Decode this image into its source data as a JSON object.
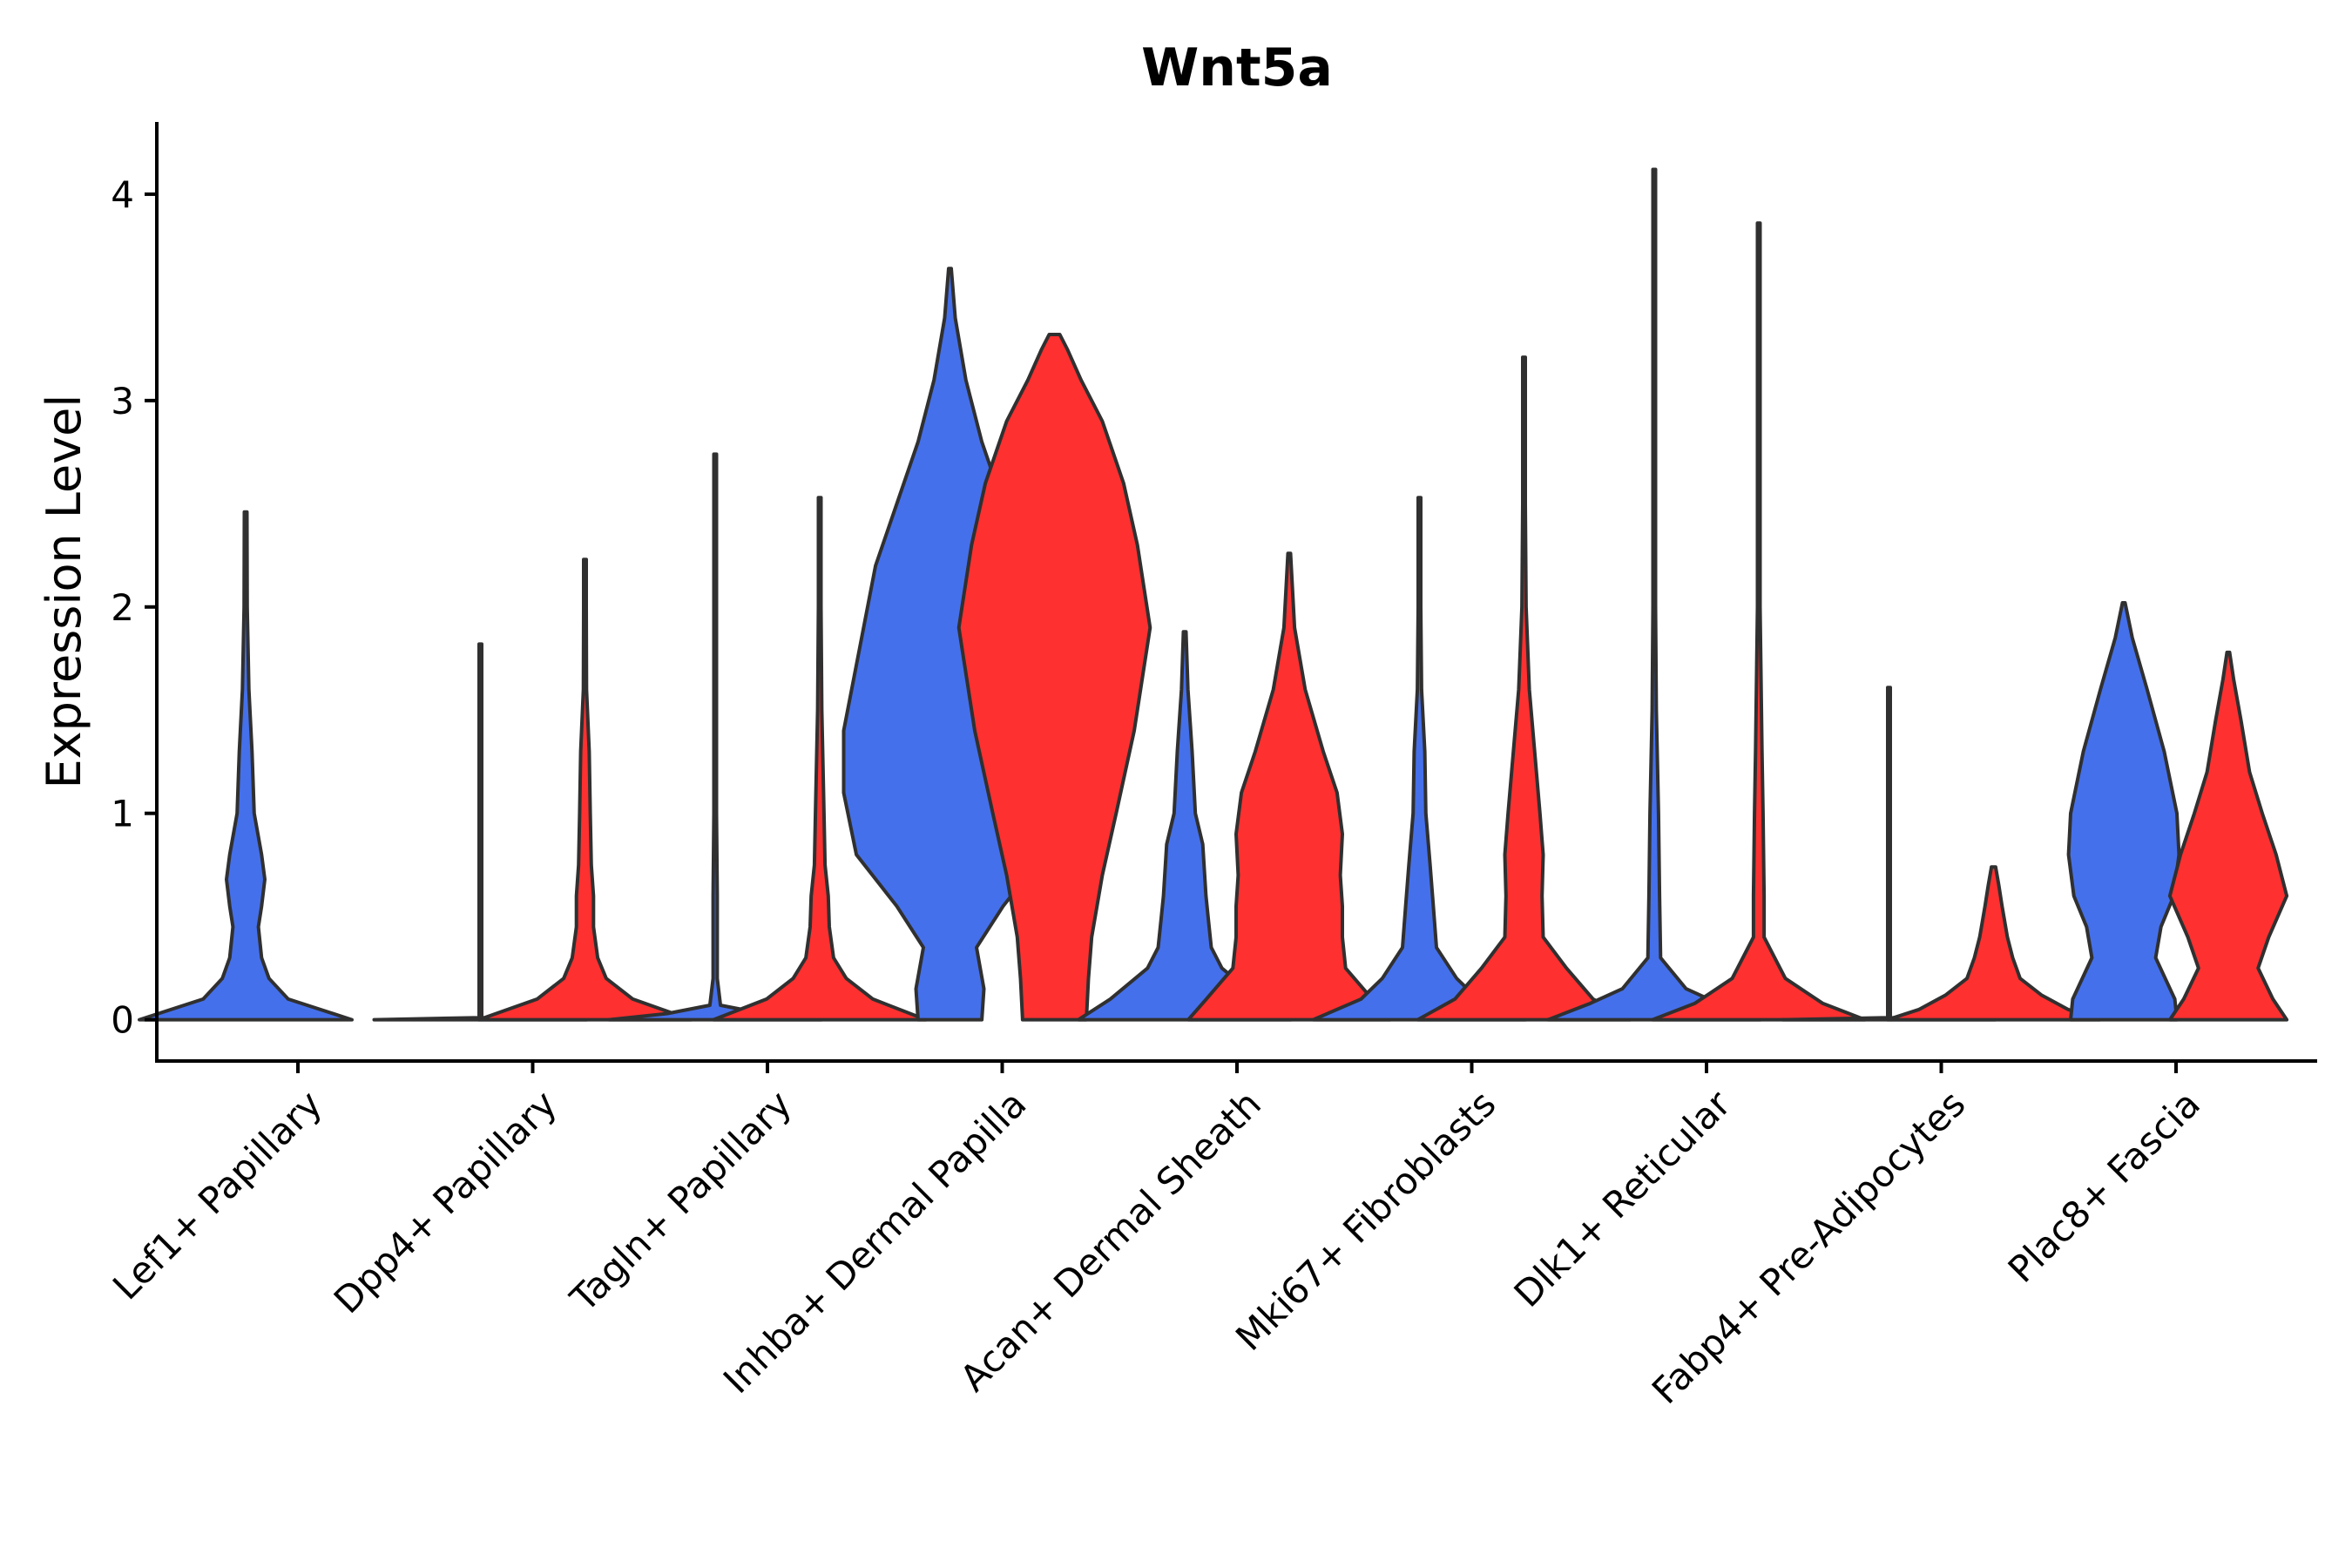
{
  "chart_data": {
    "type": "violin",
    "title": "Wnt5a",
    "xlabel": "",
    "ylabel": "Expression Level",
    "ylim": [
      -0.2,
      4.35
    ],
    "yticks": [
      0,
      1,
      2,
      3,
      4
    ],
    "grid": false,
    "legend": "none",
    "colors": {
      "group_a": "#4570EB",
      "group_b": "#FF3030",
      "outline": "#303030"
    },
    "categories": [
      "Lef1+ Papillary",
      "Dpp4+ Papillary",
      "Tagln+ Papillary",
      "Inhba+ Dermal Papilla",
      "Acan+ Dermal Sheath",
      "Mki67+ Fibroblasts",
      "Dlk1+ Reticular",
      "Fabp4+ Pre-Adipocytes",
      "Plac8+ Fascia"
    ],
    "violins": [
      {
        "category": "Lef1+ Papillary",
        "group": "blue",
        "max": 2.46,
        "profile": [
          [
            0,
            1.0
          ],
          [
            0.1,
            0.4
          ],
          [
            0.2,
            0.22
          ],
          [
            0.3,
            0.15
          ],
          [
            0.45,
            0.12
          ],
          [
            0.55,
            0.15
          ],
          [
            0.68,
            0.18
          ],
          [
            0.8,
            0.15
          ],
          [
            1.0,
            0.08
          ],
          [
            1.3,
            0.06
          ],
          [
            1.6,
            0.03
          ],
          [
            2.0,
            0.015
          ],
          [
            2.46,
            0.005
          ]
        ]
      },
      {
        "category": "Dpp4+ Papillary",
        "group": "blue",
        "max": 1.82,
        "profile": [
          [
            0,
            1.0
          ],
          [
            0.01,
            0.01
          ],
          [
            0.5,
            0.005
          ],
          [
            1.82,
            0.003
          ]
        ]
      },
      {
        "category": "Dpp4+ Papillary",
        "group": "red",
        "max": 2.23,
        "profile": [
          [
            0,
            1.0
          ],
          [
            0.1,
            0.45
          ],
          [
            0.2,
            0.2
          ],
          [
            0.3,
            0.12
          ],
          [
            0.45,
            0.08
          ],
          [
            0.6,
            0.08
          ],
          [
            0.75,
            0.06
          ],
          [
            1.0,
            0.05
          ],
          [
            1.3,
            0.04
          ],
          [
            1.6,
            0.015
          ],
          [
            2.0,
            0.006
          ],
          [
            2.23,
            0.004
          ]
        ]
      },
      {
        "category": "Tagln+ Papillary",
        "group": "blue",
        "max": 2.74,
        "profile": [
          [
            0,
            1.0
          ],
          [
            0.03,
            0.45
          ],
          [
            0.07,
            0.05
          ],
          [
            0.2,
            0.02
          ],
          [
            0.6,
            0.02
          ],
          [
            1.0,
            0.01
          ],
          [
            1.5,
            0.008
          ],
          [
            2.74,
            0.004
          ]
        ]
      },
      {
        "category": "Tagln+ Papillary",
        "group": "red",
        "max": 2.53,
        "profile": [
          [
            0,
            1.0
          ],
          [
            0.1,
            0.5
          ],
          [
            0.2,
            0.25
          ],
          [
            0.3,
            0.13
          ],
          [
            0.45,
            0.09
          ],
          [
            0.6,
            0.08
          ],
          [
            0.75,
            0.05
          ],
          [
            1.0,
            0.04
          ],
          [
            1.5,
            0.02
          ],
          [
            2.0,
            0.008
          ],
          [
            2.53,
            0.004
          ]
        ]
      },
      {
        "category": "Inhba+ Dermal Papilla",
        "group": "blue",
        "max": 3.64,
        "profile": [
          [
            0,
            0.3
          ],
          [
            0.15,
            0.32
          ],
          [
            0.35,
            0.25
          ],
          [
            0.55,
            0.5
          ],
          [
            0.8,
            0.88
          ],
          [
            1.1,
            1.0
          ],
          [
            1.4,
            1.0
          ],
          [
            1.8,
            0.85
          ],
          [
            2.2,
            0.7
          ],
          [
            2.5,
            0.5
          ],
          [
            2.8,
            0.3
          ],
          [
            3.1,
            0.15
          ],
          [
            3.4,
            0.05
          ],
          [
            3.64,
            0.005
          ]
        ]
      },
      {
        "category": "Inhba+ Dermal Papilla",
        "group": "red",
        "max": 3.32,
        "profile": [
          [
            0,
            0.3
          ],
          [
            0.2,
            0.32
          ],
          [
            0.4,
            0.35
          ],
          [
            0.7,
            0.45
          ],
          [
            1.0,
            0.58
          ],
          [
            1.4,
            0.75
          ],
          [
            1.9,
            0.9
          ],
          [
            2.3,
            0.78
          ],
          [
            2.6,
            0.65
          ],
          [
            2.9,
            0.45
          ],
          [
            3.1,
            0.25
          ],
          [
            3.25,
            0.12
          ],
          [
            3.32,
            0.05
          ]
        ]
      },
      {
        "category": "Acan+ Dermal Sheath",
        "group": "blue",
        "max": 1.88,
        "profile": [
          [
            0,
            1.0
          ],
          [
            0.1,
            0.7
          ],
          [
            0.25,
            0.35
          ],
          [
            0.35,
            0.25
          ],
          [
            0.5,
            0.22
          ],
          [
            0.6,
            0.2
          ],
          [
            0.85,
            0.17
          ],
          [
            1.0,
            0.1
          ],
          [
            1.3,
            0.07
          ],
          [
            1.6,
            0.03
          ],
          [
            1.88,
            0.005
          ]
        ]
      },
      {
        "category": "Acan+ Dermal Sheath",
        "group": "red",
        "max": 2.26,
        "profile": [
          [
            0,
            0.95
          ],
          [
            0.1,
            0.78
          ],
          [
            0.25,
            0.53
          ],
          [
            0.4,
            0.5
          ],
          [
            0.55,
            0.5
          ],
          [
            0.7,
            0.48
          ],
          [
            0.9,
            0.5
          ],
          [
            1.1,
            0.45
          ],
          [
            1.3,
            0.32
          ],
          [
            1.6,
            0.15
          ],
          [
            1.9,
            0.05
          ],
          [
            2.26,
            0.005
          ]
        ]
      },
      {
        "category": "Mki67+ Fibroblasts",
        "group": "blue",
        "max": 2.53,
        "profile": [
          [
            0,
            1.0
          ],
          [
            0.1,
            0.55
          ],
          [
            0.2,
            0.35
          ],
          [
            0.35,
            0.16
          ],
          [
            0.55,
            0.13
          ],
          [
            0.75,
            0.1
          ],
          [
            1.0,
            0.06
          ],
          [
            1.3,
            0.05
          ],
          [
            1.6,
            0.02
          ],
          [
            2.0,
            0.008
          ],
          [
            2.53,
            0.004
          ]
        ]
      },
      {
        "category": "Mki67+ Fibroblasts",
        "group": "red",
        "max": 3.21,
        "profile": [
          [
            0,
            1.0
          ],
          [
            0.1,
            0.65
          ],
          [
            0.25,
            0.4
          ],
          [
            0.4,
            0.18
          ],
          [
            0.6,
            0.17
          ],
          [
            0.8,
            0.18
          ],
          [
            1.0,
            0.15
          ],
          [
            1.3,
            0.1
          ],
          [
            1.6,
            0.05
          ],
          [
            2.0,
            0.02
          ],
          [
            2.5,
            0.008
          ],
          [
            3.21,
            0.004
          ]
        ]
      },
      {
        "category": "Dlk1+ Reticular",
        "group": "blue",
        "max": 4.12,
        "profile": [
          [
            0,
            1.0
          ],
          [
            0.08,
            0.6
          ],
          [
            0.15,
            0.3
          ],
          [
            0.3,
            0.06
          ],
          [
            0.6,
            0.05
          ],
          [
            1.0,
            0.04
          ],
          [
            1.5,
            0.02
          ],
          [
            2.0,
            0.008
          ],
          [
            3.0,
            0.004
          ],
          [
            4.12,
            0.003
          ]
        ]
      },
      {
        "category": "Dlk1+ Reticular",
        "group": "red",
        "max": 3.86,
        "profile": [
          [
            0,
            1.0
          ],
          [
            0.08,
            0.6
          ],
          [
            0.2,
            0.25
          ],
          [
            0.4,
            0.05
          ],
          [
            0.6,
            0.05
          ],
          [
            1.0,
            0.04
          ],
          [
            1.3,
            0.03
          ],
          [
            2.0,
            0.008
          ],
          [
            3.0,
            0.004
          ],
          [
            3.86,
            0.003
          ]
        ]
      },
      {
        "category": "Fabp4+ Pre-Adipocytes",
        "group": "blue",
        "max": 1.61,
        "profile": [
          [
            0,
            1.0
          ],
          [
            0.01,
            0.01
          ],
          [
            0.5,
            0.004
          ],
          [
            1.61,
            0.003
          ]
        ]
      },
      {
        "category": "Fabp4+ Pre-Adipocytes",
        "group": "red",
        "max": 0.74,
        "profile": [
          [
            0,
            1.0
          ],
          [
            0.05,
            0.7
          ],
          [
            0.12,
            0.45
          ],
          [
            0.2,
            0.25
          ],
          [
            0.3,
            0.18
          ],
          [
            0.4,
            0.13
          ],
          [
            0.55,
            0.08
          ],
          [
            0.65,
            0.05
          ],
          [
            0.74,
            0.02
          ]
        ]
      },
      {
        "category": "Plac8+ Fascia",
        "group": "blue",
        "max": 2.02,
        "profile": [
          [
            0,
            0.5
          ],
          [
            0.1,
            0.48
          ],
          [
            0.3,
            0.3
          ],
          [
            0.45,
            0.35
          ],
          [
            0.6,
            0.47
          ],
          [
            0.8,
            0.52
          ],
          [
            1.0,
            0.5
          ],
          [
            1.3,
            0.38
          ],
          [
            1.6,
            0.22
          ],
          [
            1.85,
            0.08
          ],
          [
            2.02,
            0.01
          ]
        ]
      },
      {
        "category": "Plac8+ Fascia",
        "group": "red",
        "max": 1.78,
        "profile": [
          [
            0,
            0.55
          ],
          [
            0.1,
            0.42
          ],
          [
            0.25,
            0.28
          ],
          [
            0.4,
            0.38
          ],
          [
            0.6,
            0.55
          ],
          [
            0.8,
            0.45
          ],
          [
            1.0,
            0.32
          ],
          [
            1.2,
            0.2
          ],
          [
            1.45,
            0.12
          ],
          [
            1.65,
            0.05
          ],
          [
            1.78,
            0.01
          ]
        ]
      }
    ]
  }
}
